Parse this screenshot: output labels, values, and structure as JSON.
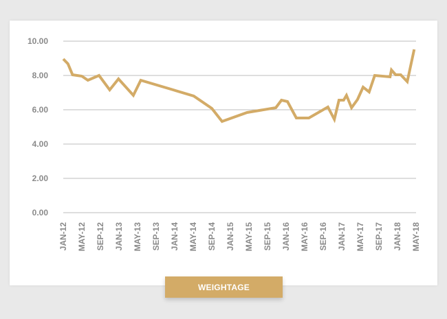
{
  "chart_data": {
    "type": "line",
    "title": "",
    "xlabel": "",
    "ylabel": "",
    "ylim": [
      0,
      10
    ],
    "yticks": [
      "0.00",
      "2.00",
      "4.00",
      "6.00",
      "8.00",
      "10.00"
    ],
    "ytick_values": [
      0,
      2,
      4,
      6,
      8,
      10
    ],
    "grid": true,
    "line_color": "#d3ab67",
    "x_unit": "months since JAN-12",
    "xlim": [
      0,
      76
    ],
    "xticks": [
      "JAN-12",
      "MAY-12",
      "SEP-12",
      "JAN-13",
      "MAY-13",
      "SEP-13",
      "JAN-14",
      "MAY-14",
      "SEP-14",
      "JAN-15",
      "MAY-15",
      "SEP-15",
      "JAN-16",
      "MAY-16",
      "SEP-16",
      "JAN-17",
      "MAY-17",
      "SEP-17",
      "JAN-18",
      "MAY-18"
    ],
    "series": [
      {
        "name": "Weightage",
        "points": [
          [
            0,
            8.96
          ],
          [
            1,
            8.68
          ],
          [
            2,
            8.04
          ],
          [
            4,
            7.96
          ],
          [
            5.3,
            7.72
          ],
          [
            7.7,
            8.0
          ],
          [
            10,
            7.16
          ],
          [
            11.9,
            7.8
          ],
          [
            15.1,
            6.84
          ],
          [
            16.7,
            7.72
          ],
          [
            22.7,
            7.24
          ],
          [
            28.1,
            6.8
          ],
          [
            32,
            6.08
          ],
          [
            34.2,
            5.32
          ],
          [
            39.6,
            5.84
          ],
          [
            45.8,
            6.12
          ],
          [
            47,
            6.56
          ],
          [
            48.3,
            6.48
          ],
          [
            50.2,
            5.52
          ],
          [
            52.9,
            5.52
          ],
          [
            57,
            6.16
          ],
          [
            58.4,
            5.44
          ],
          [
            59.4,
            6.56
          ],
          [
            60.4,
            6.56
          ],
          [
            61,
            6.84
          ],
          [
            62.1,
            6.12
          ],
          [
            63.4,
            6.6
          ],
          [
            64.6,
            7.32
          ],
          [
            65.9,
            7.04
          ],
          [
            67.1,
            8.0
          ],
          [
            70.4,
            7.92
          ],
          [
            70.7,
            8.32
          ],
          [
            71.6,
            8.04
          ],
          [
            72.7,
            8.04
          ],
          [
            74.1,
            7.64
          ],
          [
            75.6,
            9.52
          ]
        ]
      }
    ]
  },
  "legend_button": {
    "label": "WEIGHTAGE",
    "color": "#d3ab67"
  }
}
